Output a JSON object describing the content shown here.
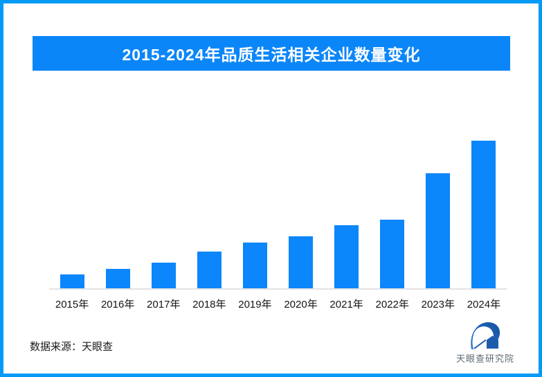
{
  "frame": {
    "border_color": "#049af8",
    "background": "#ffffff"
  },
  "title_banner": {
    "text": "2015-2024年品质生活相关企业数量变化",
    "bg_color": "#0b86f9",
    "text_color": "#ffffff"
  },
  "chart_data": {
    "type": "bar",
    "title": "2015-2024年品质生活相关企业数量变化",
    "categories": [
      "2015年",
      "2016年",
      "2017年",
      "2018年",
      "2019年",
      "2020年",
      "2021年",
      "2022年",
      "2023年",
      "2024年"
    ],
    "values": [
      21,
      29,
      38,
      54,
      67,
      76,
      92,
      100,
      167,
      214
    ],
    "values_note": "relative heights; no numeric axis or data labels shown in image",
    "xlabel": "",
    "ylabel": "",
    "ylim": [
      0,
      220
    ],
    "grid": false,
    "legend": false,
    "bar_color": "#0b86fb",
    "axis_line_color": "#e3e3e3"
  },
  "footer": {
    "source_text": "数据来源：天眼查"
  },
  "logo": {
    "text": "天眼查研究院",
    "icon": "tianyancha-eye-logo",
    "icon_color_dark": "#1d5cab",
    "icon_color_light": "#2a7dd8",
    "text_color": "#5f6a72"
  }
}
